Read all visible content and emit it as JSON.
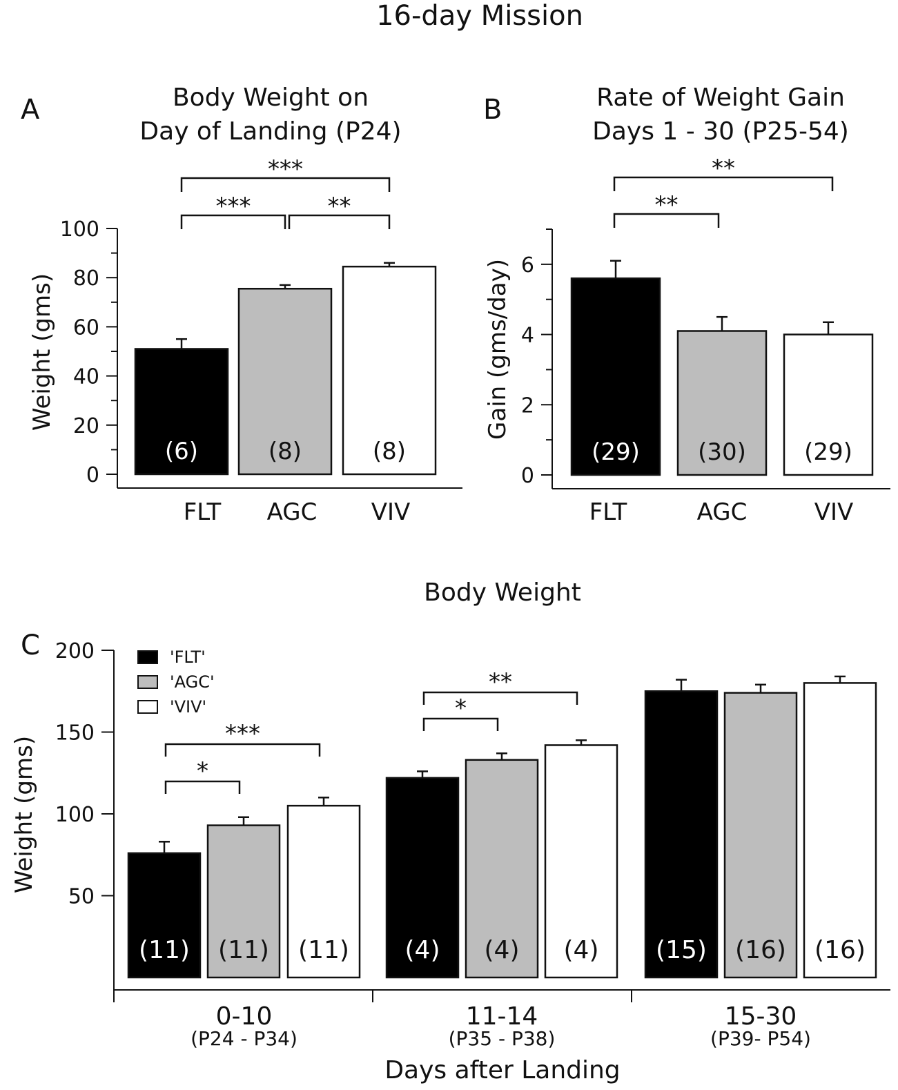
{
  "figure_title": "16-day Mission",
  "colors": {
    "FLT": "#000000",
    "AGC": "#bdbdbd",
    "VIV": "#ffffff"
  },
  "chart_data": [
    {
      "id": "A",
      "type": "bar",
      "panel_label": "A",
      "title_line1": "Body Weight on",
      "title_line2": "Day of Landing (P24)",
      "ylabel": "Weight (gms)",
      "ylim": [
        0,
        100
      ],
      "yticks": [
        "0",
        "20",
        "40",
        "60",
        "80",
        "100"
      ],
      "categories": [
        "FLT",
        "AGC",
        "VIV"
      ],
      "values": [
        51,
        75.5,
        84.5
      ],
      "errors": [
        4,
        1.5,
        1.5
      ],
      "n_labels": [
        "(6)",
        "(8)",
        "(8)"
      ],
      "significance": [
        {
          "from": "FLT",
          "to": "AGC",
          "label": "***"
        },
        {
          "from": "AGC",
          "to": "VIV",
          "label": "**"
        },
        {
          "from": "FLT",
          "to": "VIV",
          "label": "***"
        }
      ]
    },
    {
      "id": "B",
      "type": "bar",
      "panel_label": "B",
      "title_line1": "Rate of Weight Gain",
      "title_line2": "Days 1 - 30 (P25-54)",
      "ylabel": "Gain (gms/day)",
      "ylim": [
        0,
        7
      ],
      "yticks": [
        "0",
        "2",
        "4",
        "6"
      ],
      "categories": [
        "FLT",
        "AGC",
        "VIV"
      ],
      "values": [
        5.6,
        4.1,
        4.0
      ],
      "errors": [
        0.5,
        0.4,
        0.35
      ],
      "n_labels": [
        "(29)",
        "(30)",
        "(29)"
      ],
      "significance": [
        {
          "from": "FLT",
          "to": "AGC",
          "label": "**"
        },
        {
          "from": "FLT",
          "to": "VIV",
          "label": "**"
        }
      ]
    },
    {
      "id": "C",
      "type": "bar",
      "panel_label": "C",
      "title": "Body Weight",
      "ylabel": "Weight (gms)",
      "xlabel": "Days after Landing",
      "ylim": [
        0,
        200
      ],
      "yticks": [
        "50",
        "100",
        "150",
        "200"
      ],
      "legend": [
        "'FLT'",
        "'AGC'",
        "'VIV'"
      ],
      "legend_position": "top-left",
      "groups": [
        {
          "label": "0-10",
          "sublabel": "(P24 - P34)"
        },
        {
          "label": "11-14",
          "sublabel": "(P35 - P38)"
        },
        {
          "label": "15-30",
          "sublabel": "(P39- P54)"
        }
      ],
      "series": [
        {
          "name": "FLT",
          "values": [
            76,
            122,
            175
          ],
          "errors": [
            7,
            4,
            7
          ],
          "n_labels": [
            "(11)",
            "(4)",
            "(15)"
          ]
        },
        {
          "name": "AGC",
          "values": [
            93,
            133,
            174
          ],
          "errors": [
            5,
            4,
            5
          ],
          "n_labels": [
            "(11)",
            "(4)",
            "(16)"
          ]
        },
        {
          "name": "VIV",
          "values": [
            105,
            142,
            180
          ],
          "errors": [
            5,
            3,
            4
          ],
          "n_labels": [
            "(11)",
            "(4)",
            "(16)"
          ]
        }
      ],
      "significance": [
        {
          "group": 0,
          "from": "FLT",
          "to": "AGC",
          "label": "*"
        },
        {
          "group": 0,
          "from": "FLT",
          "to": "VIV",
          "label": "***"
        },
        {
          "group": 1,
          "from": "FLT",
          "to": "AGC",
          "label": "*"
        },
        {
          "group": 1,
          "from": "FLT",
          "to": "VIV",
          "label": "**"
        }
      ]
    }
  ]
}
